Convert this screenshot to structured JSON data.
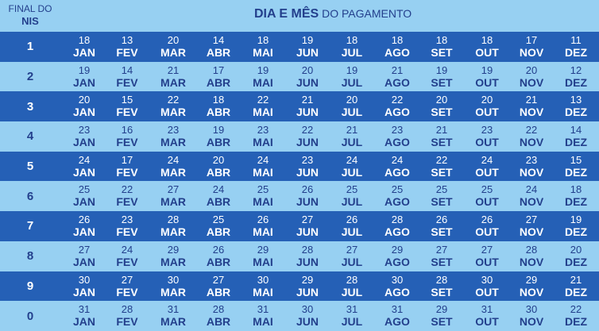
{
  "header": {
    "nis_line1": "FINAL DO",
    "nis_line2": "NIS",
    "title_bold": "DIA E MÊS",
    "title_normal": " DO PAGAMENTO"
  },
  "months": [
    "JAN",
    "FEV",
    "MAR",
    "ABR",
    "MAI",
    "JUN",
    "JUL",
    "AGO",
    "SET",
    "OUT",
    "NOV",
    "DEZ"
  ],
  "rows": [
    {
      "nis": "1",
      "days": [
        "18",
        "13",
        "20",
        "14",
        "18",
        "19",
        "18",
        "18",
        "18",
        "18",
        "17",
        "11"
      ]
    },
    {
      "nis": "2",
      "days": [
        "19",
        "14",
        "21",
        "17",
        "19",
        "20",
        "19",
        "21",
        "19",
        "19",
        "20",
        "12"
      ]
    },
    {
      "nis": "3",
      "days": [
        "20",
        "15",
        "22",
        "18",
        "22",
        "21",
        "20",
        "22",
        "20",
        "20",
        "21",
        "13"
      ]
    },
    {
      "nis": "4",
      "days": [
        "23",
        "16",
        "23",
        "19",
        "23",
        "22",
        "21",
        "23",
        "21",
        "23",
        "22",
        "14"
      ]
    },
    {
      "nis": "5",
      "days": [
        "24",
        "17",
        "24",
        "20",
        "24",
        "23",
        "24",
        "24",
        "22",
        "24",
        "23",
        "15"
      ]
    },
    {
      "nis": "6",
      "days": [
        "25",
        "22",
        "27",
        "24",
        "25",
        "26",
        "25",
        "25",
        "25",
        "25",
        "24",
        "18"
      ]
    },
    {
      "nis": "7",
      "days": [
        "26",
        "23",
        "28",
        "25",
        "26",
        "27",
        "26",
        "28",
        "26",
        "26",
        "27",
        "19"
      ]
    },
    {
      "nis": "8",
      "days": [
        "27",
        "24",
        "29",
        "26",
        "29",
        "28",
        "27",
        "29",
        "27",
        "27",
        "28",
        "20"
      ]
    },
    {
      "nis": "9",
      "days": [
        "30",
        "27",
        "30",
        "27",
        "30",
        "29",
        "28",
        "30",
        "28",
        "30",
        "29",
        "21"
      ]
    },
    {
      "nis": "0",
      "days": [
        "31",
        "28",
        "31",
        "28",
        "31",
        "30",
        "31",
        "31",
        "29",
        "31",
        "30",
        "22"
      ]
    }
  ],
  "colors": {
    "dark_band": "#2560b6",
    "light_band": "#97d0f2",
    "header_text": "#233f8c"
  }
}
